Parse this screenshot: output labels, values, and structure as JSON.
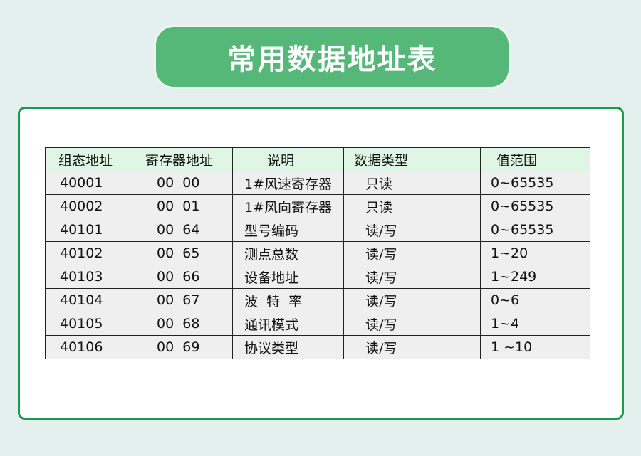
{
  "title": "常用数据地址表",
  "colors": {
    "title_bg": "#55b879",
    "card_border": "#1b9a4b",
    "header_bg": "#dff5e6",
    "row_bg": "#efefef",
    "page_bg": "#e4f0ee"
  },
  "table": {
    "headers": [
      "组态地址",
      "寄存器地址",
      "说明",
      "数据类型",
      "值范围"
    ],
    "rows": [
      [
        "40001",
        "00  00",
        "1#风速寄存器",
        "只读",
        "0~65535"
      ],
      [
        "40002",
        "00  01",
        "1#风向寄存器",
        "只读",
        "0~65535"
      ],
      [
        "40101",
        "00  64",
        "型号编码",
        "读/写",
        "0~65535"
      ],
      [
        "40102",
        "00  65",
        "测点总数",
        "读/写",
        "1~20"
      ],
      [
        "40103",
        "00  66",
        "设备地址",
        "读/写",
        "1~249"
      ],
      [
        "40104",
        "00  67",
        "波  特  率",
        "读/写",
        "0~6"
      ],
      [
        "40105",
        "00  68",
        "通讯模式",
        "读/写",
        "1~4"
      ],
      [
        "40106",
        "00  69",
        "协议类型",
        "读/写",
        "1 ~10"
      ]
    ]
  }
}
